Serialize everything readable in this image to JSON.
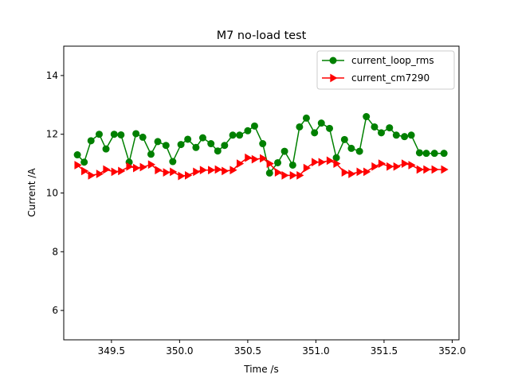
{
  "chart_data": {
    "type": "line",
    "title": "M7 no-load test",
    "xlabel": "Time /s",
    "ylabel": "Current /A",
    "xlim": [
      349.15,
      352.05
    ],
    "ylim": [
      5,
      15
    ],
    "xticks": [
      349.5,
      350.0,
      350.5,
      351.0,
      351.5,
      352.0
    ],
    "xtick_labels": [
      "349.5",
      "350.0",
      "350.5",
      "351.0",
      "351.5",
      "352.0"
    ],
    "yticks": [
      6,
      8,
      10,
      12,
      14
    ],
    "ytick_labels": [
      "6",
      "8",
      "10",
      "12",
      "14"
    ],
    "grid": false,
    "legend_position": "top-right",
    "series": [
      {
        "name": "current_loop_rms",
        "color": "#008000",
        "marker": "circle",
        "x": [
          349.25,
          349.3,
          349.35,
          349.41,
          349.46,
          349.52,
          349.57,
          349.63,
          349.68,
          349.73,
          349.79,
          349.84,
          349.9,
          349.95,
          350.01,
          350.06,
          350.12,
          350.17,
          350.23,
          350.28,
          350.33,
          350.39,
          350.44,
          350.5,
          350.55,
          350.61,
          350.66,
          350.72,
          350.77,
          350.83,
          350.88,
          350.93,
          350.99,
          351.04,
          351.1,
          351.15,
          351.21,
          351.26,
          351.32,
          351.37,
          351.43,
          351.48,
          351.54,
          351.59,
          351.65,
          351.7,
          351.76,
          351.81,
          351.87,
          351.94
        ],
        "values": [
          11.3,
          11.05,
          11.78,
          12.0,
          11.5,
          12.0,
          11.98,
          11.05,
          12.02,
          11.9,
          11.32,
          11.75,
          11.62,
          11.07,
          11.65,
          11.83,
          11.55,
          11.88,
          11.68,
          11.43,
          11.62,
          11.97,
          11.97,
          12.12,
          12.28,
          11.68,
          10.68,
          11.03,
          11.42,
          10.95,
          12.25,
          12.55,
          12.05,
          12.38,
          12.2,
          11.2,
          11.82,
          11.52,
          11.42,
          12.6,
          12.25,
          12.05,
          12.22,
          11.97,
          11.92,
          11.97,
          11.37,
          11.35,
          11.35,
          11.35
        ]
      },
      {
        "name": "current_cm7290",
        "color": "#ff0000",
        "marker": "triangle-right",
        "x": [
          349.25,
          349.3,
          349.35,
          349.41,
          349.46,
          349.52,
          349.57,
          349.63,
          349.68,
          349.73,
          349.79,
          349.84,
          349.9,
          349.95,
          350.01,
          350.06,
          350.12,
          350.17,
          350.23,
          350.28,
          350.33,
          350.39,
          350.44,
          350.5,
          350.55,
          350.61,
          350.66,
          350.72,
          350.77,
          350.83,
          350.88,
          350.93,
          350.99,
          351.04,
          351.1,
          351.15,
          351.21,
          351.26,
          351.32,
          351.37,
          351.43,
          351.48,
          351.54,
          351.59,
          351.65,
          351.7,
          351.76,
          351.81,
          351.87,
          351.94
        ],
        "values": [
          10.95,
          10.75,
          10.6,
          10.65,
          10.8,
          10.72,
          10.75,
          10.9,
          10.85,
          10.88,
          10.97,
          10.78,
          10.7,
          10.72,
          10.58,
          10.6,
          10.72,
          10.78,
          10.78,
          10.8,
          10.75,
          10.78,
          11.0,
          11.2,
          11.15,
          11.18,
          11.0,
          10.7,
          10.6,
          10.6,
          10.6,
          10.85,
          11.05,
          11.05,
          11.1,
          11.0,
          10.7,
          10.65,
          10.72,
          10.72,
          10.9,
          11.0,
          10.9,
          10.9,
          11.0,
          10.95,
          10.8,
          10.8,
          10.8,
          10.8
        ]
      }
    ]
  }
}
